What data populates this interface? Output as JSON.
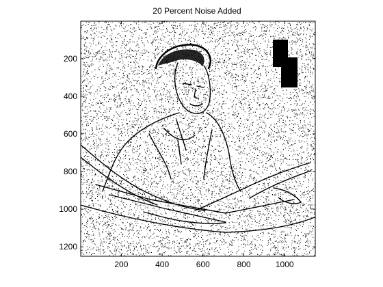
{
  "figure": {
    "title": "20 Percent Noise Added"
  },
  "image_axes": {
    "x_range": [
      1,
      1150
    ],
    "y_range": [
      1,
      1250
    ],
    "y_reversed": true,
    "x_ticks": [
      200,
      400,
      600,
      800,
      1000
    ],
    "y_ticks": [
      200,
      400,
      600,
      800,
      1000,
      1200
    ],
    "x_tick_labels": [
      "200",
      "400",
      "600",
      "800",
      "1000"
    ],
    "y_tick_labels": [
      "200",
      "400",
      "600",
      "800",
      "1000",
      "1200"
    ]
  },
  "image_content": {
    "noise_percent": 20,
    "foreground_color": "#000000",
    "background_color": "#ffffff"
  }
}
